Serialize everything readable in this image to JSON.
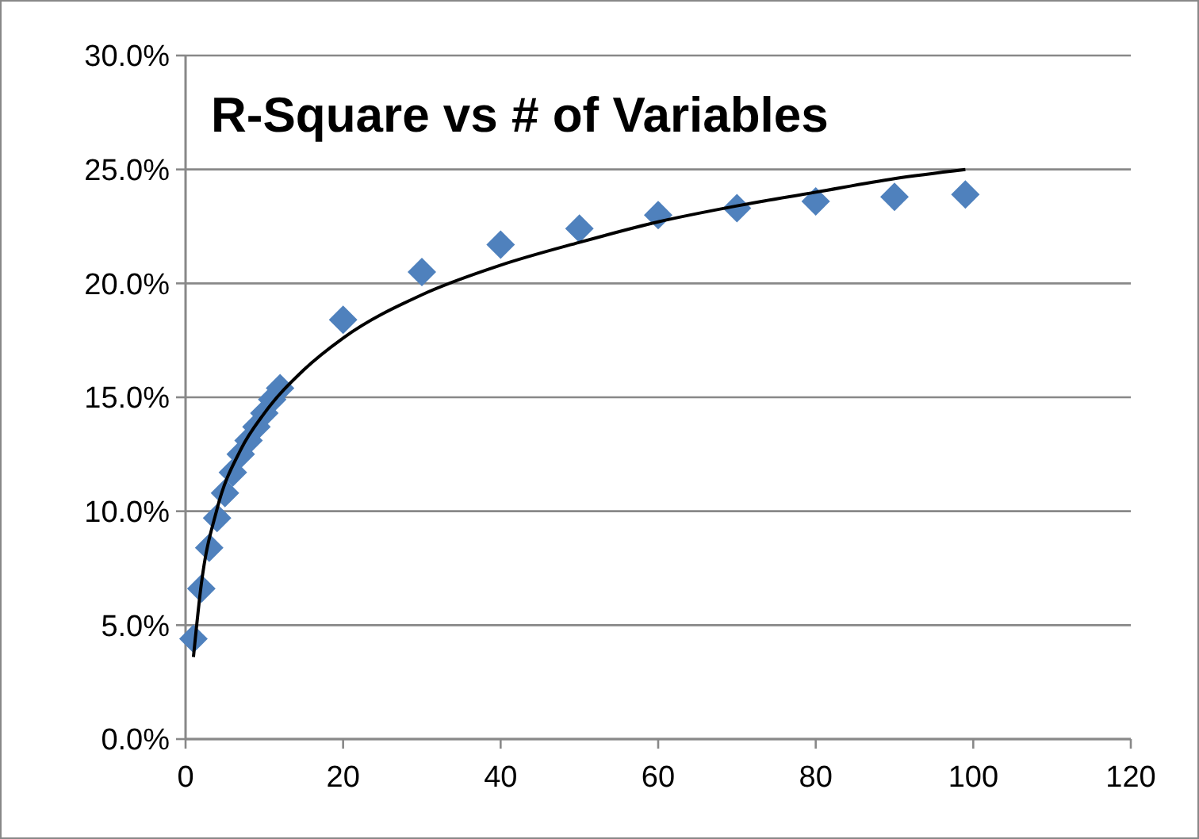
{
  "chart_data": {
    "type": "scatter",
    "title": "R-Square vs # of Variables",
    "xlim": [
      0,
      120
    ],
    "xticks": [
      0,
      20,
      40,
      60,
      80,
      100,
      120
    ],
    "ylim": [
      0,
      30
    ],
    "yticks": [
      {
        "value": 0,
        "label": "0.0%"
      },
      {
        "value": 5,
        "label": "5.0%"
      },
      {
        "value": 10,
        "label": "10.0%"
      },
      {
        "value": 15,
        "label": "15.0%"
      },
      {
        "value": 20,
        "label": "20.0%"
      },
      {
        "value": 25,
        "label": "25.0%"
      },
      {
        "value": 30,
        "label": "30.0%"
      }
    ],
    "grid": "y",
    "series": [
      {
        "color": "#4f81bd",
        "marker": "diamond",
        "x": [
          1,
          2,
          3,
          4,
          5,
          6,
          7,
          8,
          9,
          10,
          11,
          12,
          20,
          30,
          40,
          50,
          60,
          70,
          80,
          90,
          99
        ],
        "values": [
          4.4,
          6.6,
          8.4,
          9.7,
          10.8,
          11.7,
          12.5,
          13.1,
          13.7,
          14.3,
          14.9,
          15.4,
          18.4,
          20.5,
          21.7,
          22.4,
          23.0,
          23.3,
          23.6,
          23.8,
          23.9
        ]
      },
      {
        "type": "line",
        "color": "#000000",
        "marker": "none",
        "line_style": "solid",
        "x": [
          1,
          2,
          4,
          7,
          10,
          15,
          20,
          30,
          40,
          50,
          60,
          70,
          80,
          90,
          99
        ],
        "values": [
          3.6,
          6.8,
          10.1,
          12.7,
          14.3,
          16.2,
          17.6,
          19.5,
          20.8,
          21.8,
          22.7,
          23.4,
          24.0,
          24.6,
          25.0
        ]
      }
    ]
  }
}
